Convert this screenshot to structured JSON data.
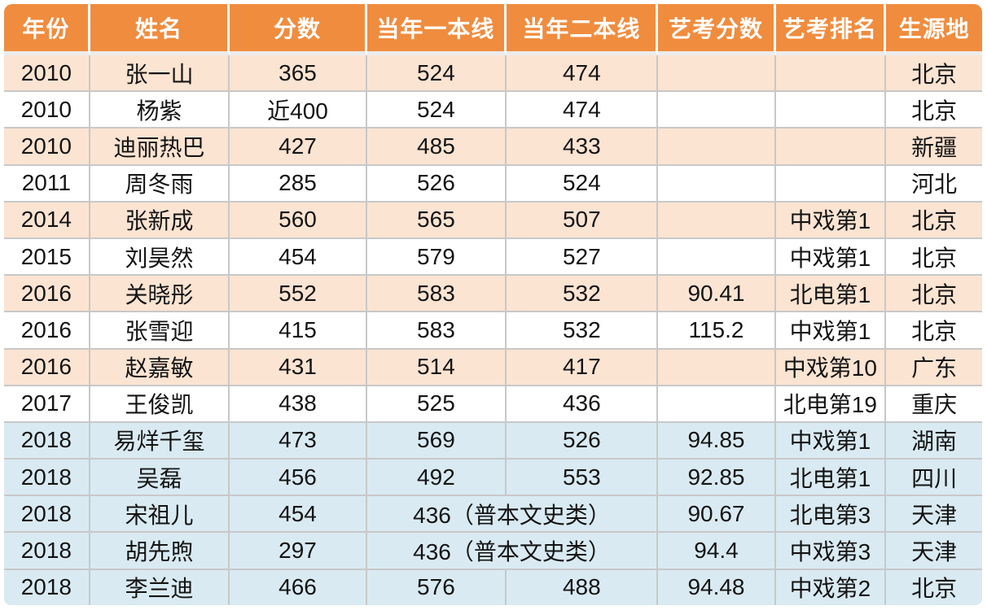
{
  "chart_data": {
    "type": "table",
    "title": "",
    "columns": [
      "年份",
      "姓名",
      "分数",
      "当年一本线",
      "当年二本线",
      "艺考分数",
      "艺考排名",
      "生源地"
    ],
    "rows": [
      [
        "2010",
        "张一山",
        "365",
        "524",
        "474",
        "",
        "",
        "北京"
      ],
      [
        "2010",
        "杨紫",
        "近400",
        "524",
        "474",
        "",
        "",
        "北京"
      ],
      [
        "2010",
        "迪丽热巴",
        "427",
        "485",
        "433",
        "",
        "",
        "新疆"
      ],
      [
        "2011",
        "周冬雨",
        "285",
        "526",
        "524",
        "",
        "",
        "河北"
      ],
      [
        "2014",
        "张新成",
        "560",
        "565",
        "507",
        "",
        "中戏第1",
        "北京"
      ],
      [
        "2015",
        "刘昊然",
        "454",
        "579",
        "527",
        "",
        "中戏第1",
        "北京"
      ],
      [
        "2016",
        "关晓彤",
        "552",
        "583",
        "532",
        "90.41",
        "北电第1",
        "北京"
      ],
      [
        "2016",
        "张雪迎",
        "415",
        "583",
        "532",
        "115.2",
        "中戏第1",
        "北京"
      ],
      [
        "2016",
        "赵嘉敏",
        "431",
        "514",
        "417",
        "",
        "中戏第10",
        "广东"
      ],
      [
        "2017",
        "王俊凯",
        "438",
        "525",
        "436",
        "",
        "北电第19",
        "重庆"
      ],
      [
        "2018",
        "易烊千玺",
        "473",
        "569",
        "526",
        "94.85",
        "中戏第1",
        "湖南"
      ],
      [
        "2018",
        "吴磊",
        "456",
        "492",
        "553",
        "92.85",
        "北电第1",
        "四川"
      ],
      [
        "2018",
        "宋祖儿",
        "454",
        "436（普本文史类）",
        "",
        "90.67",
        "北电第3",
        "天津"
      ],
      [
        "2018",
        "胡先煦",
        "297",
        "436（普本文史类）",
        "",
        "94.4",
        "中戏第3",
        "天津"
      ],
      [
        "2018",
        "李兰迪",
        "466",
        "576",
        "488",
        "94.48",
        "中戏第2",
        "北京"
      ]
    ]
  },
  "presentation": {
    "column_keys": [
      "year",
      "name",
      "score",
      "tier1-line",
      "tier2-line",
      "art-exam-score",
      "art-exam-rank",
      "origin"
    ],
    "row_themes": [
      "peach",
      "white",
      "peach",
      "white",
      "peach",
      "white",
      "peach",
      "white",
      "peach",
      "white",
      "blue",
      "blue",
      "blue",
      "blue",
      "blue"
    ],
    "merged_tier_rows": [
      12,
      13
    ],
    "colors": {
      "header_bg": "#F08C3E",
      "header_text": "#FFFFFF",
      "row_peach": "#FCE4D2",
      "row_white": "#FFFFFF",
      "row_blue": "#D9EAF2",
      "grid_line": "#C8C8C8",
      "cell_text": "#141414"
    }
  }
}
